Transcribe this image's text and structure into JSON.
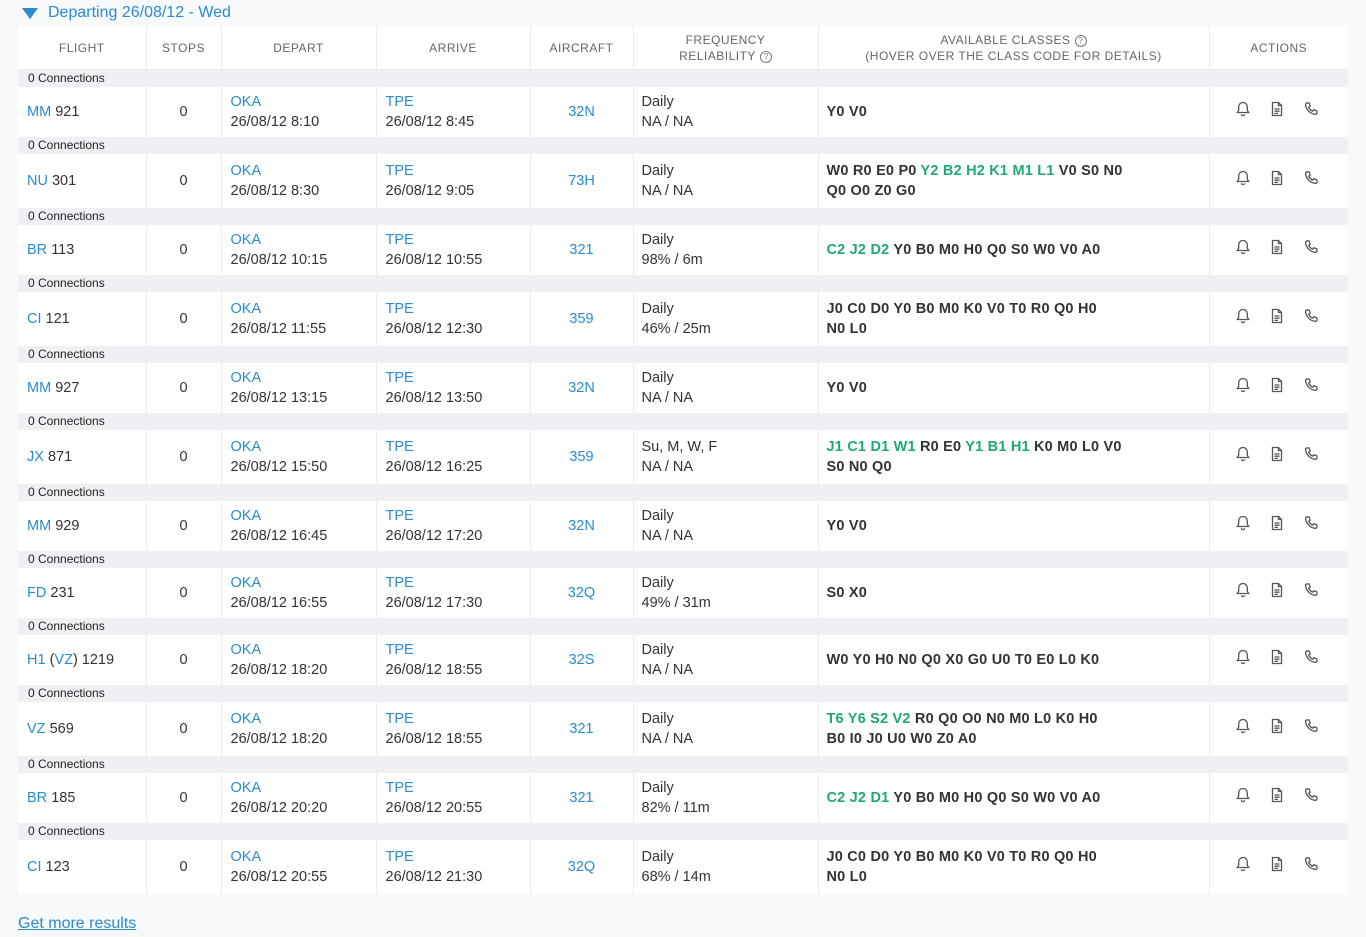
{
  "section": {
    "title": "Departing 26/08/12 - Wed"
  },
  "columns": {
    "flight": "FLIGHT",
    "stops": "STOPS",
    "depart": "DEPART",
    "arrive": "ARRIVE",
    "aircraft": "AIRCRAFT",
    "frequency_line1": "FREQUENCY",
    "frequency_line2": "RELIABILITY",
    "classes_line1": "AVAILABLE CLASSES",
    "classes_line2": "(HOVER OVER THE CLASS CODE FOR DETAILS)",
    "actions": "ACTIONS"
  },
  "colors": {
    "link": "#2a8bd1",
    "available_class": "#1fa77a",
    "connection_band": "#eef0f3"
  },
  "icons": [
    "bell-icon",
    "document-icon",
    "phone-icon"
  ],
  "flights": [
    {
      "connections": "0 Connections",
      "airline": "MM",
      "airline_extra": "",
      "number": "921",
      "stops": "0",
      "dep_code": "OKA",
      "dep_time": "26/08/12 8:10",
      "arr_code": "TPE",
      "arr_time": "26/08/12 8:45",
      "aircraft": "32N",
      "frequency": "Daily",
      "reliability": "NA / NA",
      "classes": [
        [
          {
            "c": "Y0",
            "g": false
          },
          {
            "c": "V0",
            "g": false
          }
        ]
      ]
    },
    {
      "connections": "0 Connections",
      "airline": "NU",
      "airline_extra": "",
      "number": "301",
      "stops": "0",
      "dep_code": "OKA",
      "dep_time": "26/08/12 8:30",
      "arr_code": "TPE",
      "arr_time": "26/08/12 9:05",
      "aircraft": "73H",
      "frequency": "Daily",
      "reliability": "NA / NA",
      "classes": [
        [
          {
            "c": "W0",
            "g": false
          },
          {
            "c": "R0",
            "g": false
          },
          {
            "c": "E0",
            "g": false
          },
          {
            "c": "P0",
            "g": false
          },
          {
            "c": "Y2",
            "g": true
          },
          {
            "c": "B2",
            "g": true
          },
          {
            "c": "H2",
            "g": true
          },
          {
            "c": "K1",
            "g": true
          },
          {
            "c": "M1",
            "g": true
          },
          {
            "c": "L1",
            "g": true
          },
          {
            "c": "V0",
            "g": false
          },
          {
            "c": "S0",
            "g": false
          },
          {
            "c": "N0",
            "g": false
          }
        ],
        [
          {
            "c": "Q0",
            "g": false
          },
          {
            "c": "O0",
            "g": false
          },
          {
            "c": "Z0",
            "g": false
          },
          {
            "c": "G0",
            "g": false
          }
        ]
      ]
    },
    {
      "connections": "0 Connections",
      "airline": "BR",
      "airline_extra": "",
      "number": "113",
      "stops": "0",
      "dep_code": "OKA",
      "dep_time": "26/08/12 10:15",
      "arr_code": "TPE",
      "arr_time": "26/08/12 10:55",
      "aircraft": "321",
      "frequency": "Daily",
      "reliability": "98% / 6m",
      "classes": [
        [
          {
            "c": "C2",
            "g": true
          },
          {
            "c": "J2",
            "g": true
          },
          {
            "c": "D2",
            "g": true
          },
          {
            "c": "Y0",
            "g": false
          },
          {
            "c": "B0",
            "g": false
          },
          {
            "c": "M0",
            "g": false
          },
          {
            "c": "H0",
            "g": false
          },
          {
            "c": "Q0",
            "g": false
          },
          {
            "c": "S0",
            "g": false
          },
          {
            "c": "W0",
            "g": false
          },
          {
            "c": "V0",
            "g": false
          },
          {
            "c": "A0",
            "g": false
          }
        ]
      ]
    },
    {
      "connections": "0 Connections",
      "airline": "CI",
      "airline_extra": "",
      "number": "121",
      "stops": "0",
      "dep_code": "OKA",
      "dep_time": "26/08/12 11:55",
      "arr_code": "TPE",
      "arr_time": "26/08/12 12:30",
      "aircraft": "359",
      "frequency": "Daily",
      "reliability": "46% / 25m",
      "classes": [
        [
          {
            "c": "J0",
            "g": false
          },
          {
            "c": "C0",
            "g": false
          },
          {
            "c": "D0",
            "g": false
          },
          {
            "c": "Y0",
            "g": false
          },
          {
            "c": "B0",
            "g": false
          },
          {
            "c": "M0",
            "g": false
          },
          {
            "c": "K0",
            "g": false
          },
          {
            "c": "V0",
            "g": false
          },
          {
            "c": "T0",
            "g": false
          },
          {
            "c": "R0",
            "g": false
          },
          {
            "c": "Q0",
            "g": false
          },
          {
            "c": "H0",
            "g": false
          }
        ],
        [
          {
            "c": "N0",
            "g": false
          },
          {
            "c": "L0",
            "g": false
          }
        ]
      ]
    },
    {
      "connections": "0 Connections",
      "airline": "MM",
      "airline_extra": "",
      "number": "927",
      "stops": "0",
      "dep_code": "OKA",
      "dep_time": "26/08/12 13:15",
      "arr_code": "TPE",
      "arr_time": "26/08/12 13:50",
      "aircraft": "32N",
      "frequency": "Daily",
      "reliability": "NA / NA",
      "classes": [
        [
          {
            "c": "Y0",
            "g": false
          },
          {
            "c": "V0",
            "g": false
          }
        ]
      ]
    },
    {
      "connections": "0 Connections",
      "airline": "JX",
      "airline_extra": "",
      "number": "871",
      "stops": "0",
      "dep_code": "OKA",
      "dep_time": "26/08/12 15:50",
      "arr_code": "TPE",
      "arr_time": "26/08/12 16:25",
      "aircraft": "359",
      "frequency": "Su, M, W, F",
      "reliability": "NA / NA",
      "classes": [
        [
          {
            "c": "J1",
            "g": true
          },
          {
            "c": "C1",
            "g": true
          },
          {
            "c": "D1",
            "g": true
          },
          {
            "c": "W1",
            "g": true
          },
          {
            "c": "R0",
            "g": false
          },
          {
            "c": "E0",
            "g": false
          },
          {
            "c": "Y1",
            "g": true
          },
          {
            "c": "B1",
            "g": true
          },
          {
            "c": "H1",
            "g": true
          },
          {
            "c": "K0",
            "g": false
          },
          {
            "c": "M0",
            "g": false
          },
          {
            "c": "L0",
            "g": false
          },
          {
            "c": "V0",
            "g": false
          }
        ],
        [
          {
            "c": "S0",
            "g": false
          },
          {
            "c": "N0",
            "g": false
          },
          {
            "c": "Q0",
            "g": false
          }
        ]
      ]
    },
    {
      "connections": "0 Connections",
      "airline": "MM",
      "airline_extra": "",
      "number": "929",
      "stops": "0",
      "dep_code": "OKA",
      "dep_time": "26/08/12 16:45",
      "arr_code": "TPE",
      "arr_time": "26/08/12 17:20",
      "aircraft": "32N",
      "frequency": "Daily",
      "reliability": "NA / NA",
      "classes": [
        [
          {
            "c": "Y0",
            "g": false
          },
          {
            "c": "V0",
            "g": false
          }
        ]
      ]
    },
    {
      "connections": "0 Connections",
      "airline": "FD",
      "airline_extra": "",
      "number": "231",
      "stops": "0",
      "dep_code": "OKA",
      "dep_time": "26/08/12 16:55",
      "arr_code": "TPE",
      "arr_time": "26/08/12 17:30",
      "aircraft": "32Q",
      "frequency": "Daily",
      "reliability": "49% / 31m",
      "classes": [
        [
          {
            "c": "S0",
            "g": false
          },
          {
            "c": "X0",
            "g": false
          }
        ]
      ]
    },
    {
      "connections": "0 Connections",
      "airline": "H1",
      "airline_extra": "VZ",
      "number": "1219",
      "stops": "0",
      "dep_code": "OKA",
      "dep_time": "26/08/12 18:20",
      "arr_code": "TPE",
      "arr_time": "26/08/12 18:55",
      "aircraft": "32S",
      "frequency": "Daily",
      "reliability": "NA / NA",
      "classes": [
        [
          {
            "c": "W0",
            "g": false
          },
          {
            "c": "Y0",
            "g": false
          },
          {
            "c": "H0",
            "g": false
          },
          {
            "c": "N0",
            "g": false
          },
          {
            "c": "Q0",
            "g": false
          },
          {
            "c": "X0",
            "g": false
          },
          {
            "c": "G0",
            "g": false
          },
          {
            "c": "U0",
            "g": false
          },
          {
            "c": "T0",
            "g": false
          },
          {
            "c": "E0",
            "g": false
          },
          {
            "c": "L0",
            "g": false
          },
          {
            "c": "K0",
            "g": false
          }
        ]
      ]
    },
    {
      "connections": "0 Connections",
      "airline": "VZ",
      "airline_extra": "",
      "number": "569",
      "stops": "0",
      "dep_code": "OKA",
      "dep_time": "26/08/12 18:20",
      "arr_code": "TPE",
      "arr_time": "26/08/12 18:55",
      "aircraft": "321",
      "frequency": "Daily",
      "reliability": "NA / NA",
      "classes": [
        [
          {
            "c": "T6",
            "g": true
          },
          {
            "c": "Y6",
            "g": true
          },
          {
            "c": "S2",
            "g": true
          },
          {
            "c": "V2",
            "g": true
          },
          {
            "c": "R0",
            "g": false
          },
          {
            "c": "Q0",
            "g": false
          },
          {
            "c": "O0",
            "g": false
          },
          {
            "c": "N0",
            "g": false
          },
          {
            "c": "M0",
            "g": false
          },
          {
            "c": "L0",
            "g": false
          },
          {
            "c": "K0",
            "g": false
          },
          {
            "c": "H0",
            "g": false
          }
        ],
        [
          {
            "c": "B0",
            "g": false
          },
          {
            "c": "I0",
            "g": false
          },
          {
            "c": "J0",
            "g": false
          },
          {
            "c": "U0",
            "g": false
          },
          {
            "c": "W0",
            "g": false
          },
          {
            "c": "Z0",
            "g": false
          },
          {
            "c": "A0",
            "g": false
          }
        ]
      ]
    },
    {
      "connections": "0 Connections",
      "airline": "BR",
      "airline_extra": "",
      "number": "185",
      "stops": "0",
      "dep_code": "OKA",
      "dep_time": "26/08/12 20:20",
      "arr_code": "TPE",
      "arr_time": "26/08/12 20:55",
      "aircraft": "321",
      "frequency": "Daily",
      "reliability": "82% / 11m",
      "classes": [
        [
          {
            "c": "C2",
            "g": true
          },
          {
            "c": "J2",
            "g": true
          },
          {
            "c": "D1",
            "g": true
          },
          {
            "c": "Y0",
            "g": false
          },
          {
            "c": "B0",
            "g": false
          },
          {
            "c": "M0",
            "g": false
          },
          {
            "c": "H0",
            "g": false
          },
          {
            "c": "Q0",
            "g": false
          },
          {
            "c": "S0",
            "g": false
          },
          {
            "c": "W0",
            "g": false
          },
          {
            "c": "V0",
            "g": false
          },
          {
            "c": "A0",
            "g": false
          }
        ]
      ]
    },
    {
      "connections": "0 Connections",
      "airline": "CI",
      "airline_extra": "",
      "number": "123",
      "stops": "0",
      "dep_code": "OKA",
      "dep_time": "26/08/12 20:55",
      "arr_code": "TPE",
      "arr_time": "26/08/12 21:30",
      "aircraft": "32Q",
      "frequency": "Daily",
      "reliability": "68% / 14m",
      "classes": [
        [
          {
            "c": "J0",
            "g": false
          },
          {
            "c": "C0",
            "g": false
          },
          {
            "c": "D0",
            "g": false
          },
          {
            "c": "Y0",
            "g": false
          },
          {
            "c": "B0",
            "g": false
          },
          {
            "c": "M0",
            "g": false
          },
          {
            "c": "K0",
            "g": false
          },
          {
            "c": "V0",
            "g": false
          },
          {
            "c": "T0",
            "g": false
          },
          {
            "c": "R0",
            "g": false
          },
          {
            "c": "Q0",
            "g": false
          },
          {
            "c": "H0",
            "g": false
          }
        ],
        [
          {
            "c": "N0",
            "g": false
          },
          {
            "c": "L0",
            "g": false
          }
        ]
      ]
    }
  ],
  "footer": {
    "more_results": "Get more results"
  }
}
